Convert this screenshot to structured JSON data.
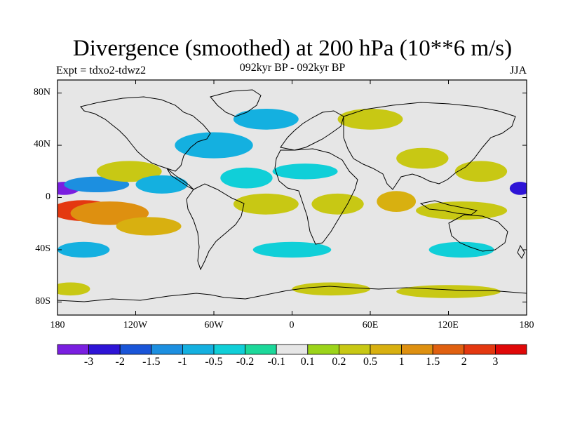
{
  "title": "Divergence (smoothed) at 200 hPa (10**6 m/s)",
  "expt_label": "Expt = tdxo2-tdwz2",
  "subtitle": "092kyr BP - 092kyr BP",
  "season": "JJA",
  "lat_ticks": [
    "80N",
    "40N",
    "0",
    "40S",
    "80S"
  ],
  "lon_ticks": [
    "180",
    "120W",
    "60W",
    "0",
    "60E",
    "120E",
    "180"
  ],
  "colorbar": {
    "colors": [
      "#7a1fe0",
      "#2e14d6",
      "#1a55d8",
      "#1c8fe0",
      "#14b0e0",
      "#10cfd8",
      "#1cd89a",
      "#e6e6e6",
      "#9cd41a",
      "#c8c814",
      "#d8b010",
      "#de9010",
      "#e06010",
      "#e43810",
      "#e00808"
    ],
    "labels": [
      "-3",
      "-2",
      "-1.5",
      "-1",
      "-0.5",
      "-0.2",
      "-0.1",
      "0.1",
      "0.2",
      "0.5",
      "1",
      "1.5",
      "2",
      "3"
    ]
  },
  "chart_data": {
    "type": "heatmap",
    "title": "Divergence (smoothed) at 200 hPa (10**6 m/s)",
    "xlabel": "",
    "ylabel": "",
    "xlim": [
      -180,
      180
    ],
    "ylim": [
      -90,
      90
    ],
    "levels": [
      -3,
      -2,
      -1.5,
      -1,
      -0.5,
      -0.2,
      -0.1,
      0.1,
      0.2,
      0.5,
      1,
      1.5,
      2,
      3
    ],
    "blobs": [
      {
        "lon": -175,
        "lat": 7,
        "value": -3,
        "rx": 12,
        "ry": 5
      },
      {
        "lon": -160,
        "lat": -10,
        "value": 2.5,
        "rx": 25,
        "ry": 8
      },
      {
        "lon": -140,
        "lat": -12,
        "value": 1.5,
        "rx": 30,
        "ry": 9
      },
      {
        "lon": -150,
        "lat": 10,
        "value": -1,
        "rx": 25,
        "ry": 6
      },
      {
        "lon": -110,
        "lat": -22,
        "value": 0.6,
        "rx": 25,
        "ry": 7
      },
      {
        "lon": -125,
        "lat": 20,
        "value": 0.5,
        "rx": 25,
        "ry": 8
      },
      {
        "lon": -100,
        "lat": 10,
        "value": -0.5,
        "rx": 20,
        "ry": 7
      },
      {
        "lon": -60,
        "lat": 40,
        "value": -0.5,
        "rx": 30,
        "ry": 10
      },
      {
        "lon": -35,
        "lat": 15,
        "value": -0.2,
        "rx": 20,
        "ry": 8
      },
      {
        "lon": -20,
        "lat": -5,
        "value": 0.5,
        "rx": 25,
        "ry": 8
      },
      {
        "lon": 10,
        "lat": 20,
        "value": -0.3,
        "rx": 25,
        "ry": 6
      },
      {
        "lon": 35,
        "lat": -5,
        "value": 0.5,
        "rx": 20,
        "ry": 8
      },
      {
        "lon": 80,
        "lat": -3,
        "value": 1,
        "rx": 15,
        "ry": 8
      },
      {
        "lon": 100,
        "lat": 30,
        "value": 0.5,
        "rx": 20,
        "ry": 8
      },
      {
        "lon": 130,
        "lat": -10,
        "value": 0.5,
        "rx": 35,
        "ry": 7
      },
      {
        "lon": 145,
        "lat": 20,
        "value": 0.5,
        "rx": 20,
        "ry": 8
      },
      {
        "lon": 175,
        "lat": 7,
        "value": -2,
        "rx": 8,
        "ry": 5
      },
      {
        "lon": -20,
        "lat": 60,
        "value": -0.5,
        "rx": 25,
        "ry": 8
      },
      {
        "lon": 60,
        "lat": 60,
        "value": 0.3,
        "rx": 25,
        "ry": 8
      },
      {
        "lon": -160,
        "lat": -40,
        "value": -0.5,
        "rx": 20,
        "ry": 6
      },
      {
        "lon": 0,
        "lat": -40,
        "value": -0.3,
        "rx": 30,
        "ry": 6
      },
      {
        "lon": 130,
        "lat": -40,
        "value": -0.3,
        "rx": 25,
        "ry": 6
      },
      {
        "lon": -170,
        "lat": -70,
        "value": 0.3,
        "rx": 15,
        "ry": 5
      },
      {
        "lon": 30,
        "lat": -70,
        "value": 0.3,
        "rx": 30,
        "ry": 5
      },
      {
        "lon": 120,
        "lat": -72,
        "value": 0.3,
        "rx": 40,
        "ry": 5
      }
    ]
  }
}
